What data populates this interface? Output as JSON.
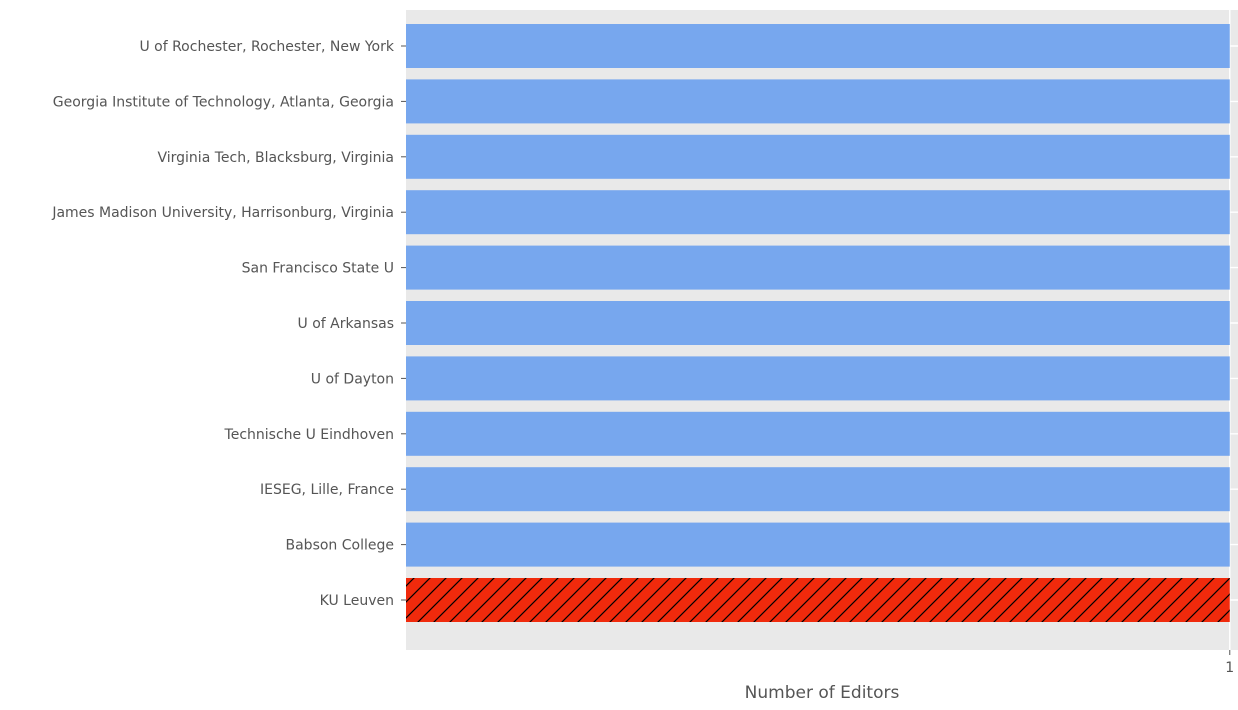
{
  "chart_data": {
    "type": "bar",
    "orientation": "horizontal",
    "title": "",
    "xlabel": "Number of Editors",
    "ylabel": "",
    "categories": [
      "U of Rochester, Rochester, New York",
      "Georgia Institute of Technology, Atlanta, Georgia",
      "Virginia Tech, Blacksburg, Virginia",
      "James Madison University, Harrisonburg, Virginia",
      "San Francisco State U",
      "U of Arkansas",
      "U of Dayton",
      "Technische U Eindhoven",
      "IESEG, Lille, France",
      "Babson College",
      "KU Leuven"
    ],
    "values": [
      1,
      1,
      1,
      1,
      1,
      1,
      1,
      1,
      1,
      1,
      1
    ],
    "highlighted": [
      "KU Leuven"
    ],
    "xlim": [
      0,
      1.01
    ],
    "xticks": [
      1
    ],
    "grid": true,
    "colors": {
      "panel_background": "#e9e9e9",
      "grid": "#ffffff",
      "bar": "#77a7ee",
      "highlight": "#f02a0c",
      "hatch": "#000000",
      "tick_text": "#555555",
      "axis_label": "#555555"
    }
  }
}
